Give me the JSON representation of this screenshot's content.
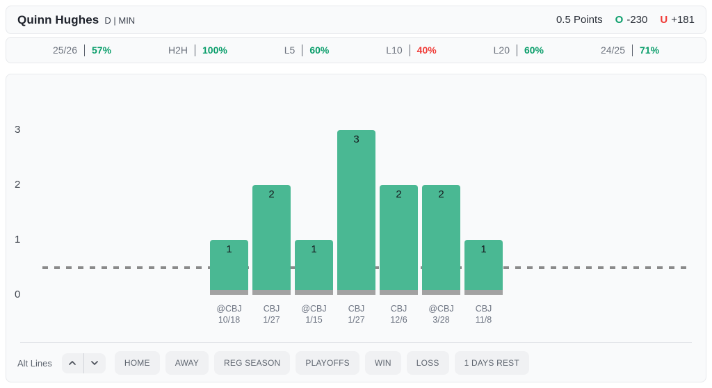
{
  "header": {
    "player_name": "Quinn Hughes",
    "position_team": "D | MIN",
    "prop_line": "0.5 Points",
    "over_label": "O",
    "over_odds": "-230",
    "under_label": "U",
    "under_odds": "+181"
  },
  "splits": [
    {
      "label": "25/26",
      "value": "57%",
      "trend": "up"
    },
    {
      "label": "H2H",
      "value": "100%",
      "trend": "up"
    },
    {
      "label": "L5",
      "value": "60%",
      "trend": "up"
    },
    {
      "label": "L10",
      "value": "40%",
      "trend": "down"
    },
    {
      "label": "L20",
      "value": "60%",
      "trend": "up"
    },
    {
      "label": "24/25",
      "value": "71%",
      "trend": "up"
    }
  ],
  "chart_data": {
    "type": "bar",
    "categories": [
      "@CBJ 10/18",
      "CBJ 1/27",
      "@CBJ 1/15",
      "CBJ 1/27",
      "CBJ 12/6",
      "@CBJ 3/28",
      "CBJ 11/8"
    ],
    "games": [
      {
        "opponent": "@CBJ",
        "date": "10/18"
      },
      {
        "opponent": "CBJ",
        "date": "1/27"
      },
      {
        "opponent": "@CBJ",
        "date": "1/15"
      },
      {
        "opponent": "CBJ",
        "date": "1/27"
      },
      {
        "opponent": "CBJ",
        "date": "12/6"
      },
      {
        "opponent": "@CBJ",
        "date": "3/28"
      },
      {
        "opponent": "CBJ",
        "date": "11/8"
      }
    ],
    "values": [
      1,
      2,
      1,
      3,
      2,
      2,
      1
    ],
    "reference_line": 0.5,
    "ylim": [
      0,
      3.5
    ],
    "yticks": [
      0,
      1,
      2,
      3
    ],
    "grid": false,
    "legend": false,
    "bar_color": "#4ab893",
    "bar_base_color": "#a2a2a2",
    "reference_line_color": "#8a8a8a"
  },
  "controls": {
    "alt_lines_label": "Alt Lines",
    "up_icon": "chevron-up",
    "down_icon": "chevron-down",
    "filters": [
      "HOME",
      "AWAY",
      "REG SEASON",
      "PLAYOFFS",
      "WIN",
      "LOSS",
      "1 DAYS REST"
    ]
  },
  "colors": {
    "green": "#0b9e6b",
    "red": "#f03a36",
    "dark_text": "#1d212a",
    "gray_text": "#6c727d",
    "card_bg": "#f9fafb",
    "card_border": "#e7e9ec"
  }
}
